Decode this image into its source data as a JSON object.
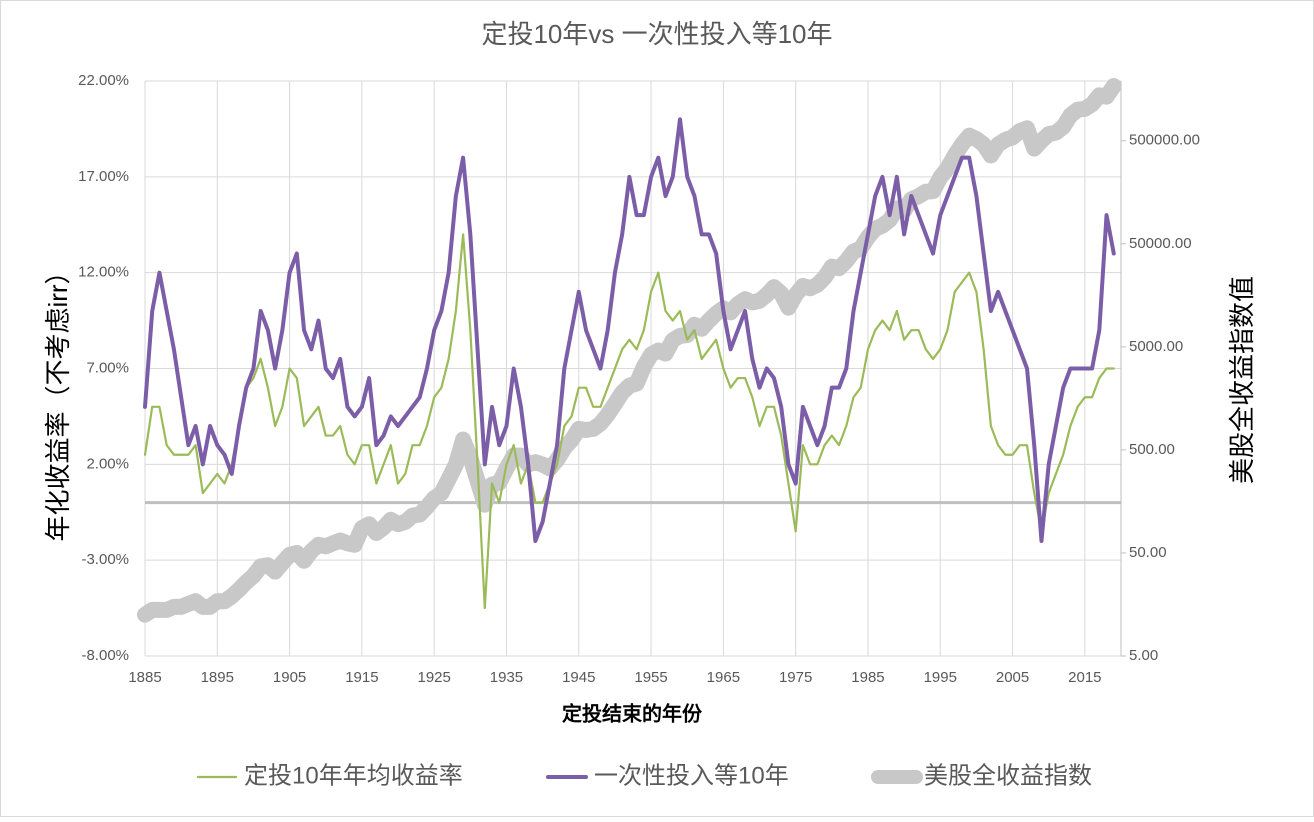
{
  "chart_data": {
    "type": "line",
    "title": "定投10年vs 一次性投入等10年",
    "xlabel": "定投结束的年份",
    "ylabel": "年化收益率（不考虑irr）",
    "y2label": "美股全收益指数值",
    "x": [
      1885,
      1886,
      1887,
      1888,
      1889,
      1890,
      1891,
      1892,
      1893,
      1894,
      1895,
      1896,
      1897,
      1898,
      1899,
      1900,
      1901,
      1902,
      1903,
      1904,
      1905,
      1906,
      1907,
      1908,
      1909,
      1910,
      1911,
      1912,
      1913,
      1914,
      1915,
      1916,
      1917,
      1918,
      1919,
      1920,
      1921,
      1922,
      1923,
      1924,
      1925,
      1926,
      1927,
      1928,
      1929,
      1930,
      1931,
      1932,
      1933,
      1934,
      1935,
      1936,
      1937,
      1938,
      1939,
      1940,
      1941,
      1942,
      1943,
      1944,
      1945,
      1946,
      1947,
      1948,
      1949,
      1950,
      1951,
      1952,
      1953,
      1954,
      1955,
      1956,
      1957,
      1958,
      1959,
      1960,
      1961,
      1962,
      1963,
      1964,
      1965,
      1966,
      1967,
      1968,
      1969,
      1970,
      1971,
      1972,
      1973,
      1974,
      1975,
      1976,
      1977,
      1978,
      1979,
      1980,
      1981,
      1982,
      1983,
      1984,
      1985,
      1986,
      1987,
      1988,
      1989,
      1990,
      1991,
      1992,
      1993,
      1994,
      1995,
      1996,
      1997,
      1998,
      1999,
      2000,
      2001,
      2002,
      2003,
      2004,
      2005,
      2006,
      2007,
      2008,
      2009,
      2010,
      2011,
      2012,
      2013,
      2014,
      2015,
      2016,
      2017,
      2018,
      2019
    ],
    "series": [
      {
        "name": "美股全收益指数",
        "color": "#c8c8c8",
        "axis": "y2",
        "values": [
          12.6,
          14,
          14,
          14,
          15,
          15,
          16,
          17,
          15,
          15,
          17,
          17,
          19,
          22,
          26,
          30,
          37,
          38,
          33,
          40,
          48,
          50,
          42,
          52,
          60,
          58,
          62,
          66,
          62,
          60,
          87,
          95,
          78,
          88,
          105,
          95,
          100,
          115,
          118,
          140,
          170,
          190,
          260,
          360,
          630,
          420,
          250,
          147,
          230,
          240,
          330,
          440,
          440,
          360,
          380,
          360,
          330,
          400,
          520,
          620,
          800,
          780,
          800,
          900,
          1100,
          1400,
          1800,
          2100,
          2200,
          3200,
          4200,
          4600,
          4300,
          5800,
          6400,
          6500,
          8200,
          7500,
          9000,
          10500,
          11800,
          10800,
          13000,
          14500,
          13500,
          14000,
          16000,
          19000,
          16500,
          12000,
          16000,
          19500,
          18500,
          20000,
          23500,
          30000,
          29000,
          34000,
          42000,
          45000,
          58000,
          70000,
          75000,
          85000,
          110000,
          105000,
          135000,
          145000,
          160000,
          162000,
          220000,
          270000,
          360000,
          460000,
          560000,
          520000,
          460000,
          360000,
          460000,
          510000,
          540000,
          620000,
          660000,
          420000,
          500000,
          580000,
          600000,
          680000,
          880000,
          1000000,
          1020000,
          1130000,
          1380000,
          1340000,
          1700000
        ]
      },
      {
        "name": "定投10年年均收益率",
        "color": "#9bbb59",
        "values": [
          2.5,
          5,
          5,
          3,
          2.5,
          2.5,
          2.5,
          3,
          0.5,
          1,
          1.5,
          1,
          2,
          4,
          6,
          6.5,
          7.5,
          6,
          4,
          5,
          7,
          6.5,
          4,
          4.5,
          5,
          3.5,
          3.5,
          4,
          2.5,
          2,
          3,
          3,
          1,
          2,
          3,
          1,
          1.5,
          3,
          3,
          4,
          5.5,
          6,
          7.5,
          10,
          14,
          9,
          2,
          -5.5,
          1,
          0,
          2,
          3,
          1,
          2,
          0,
          0,
          1,
          2,
          4,
          4.5,
          6,
          6,
          5,
          5,
          6,
          7,
          8,
          8.5,
          8,
          9,
          11,
          12,
          10,
          9.5,
          10,
          8.5,
          9,
          7.5,
          8,
          8.5,
          7,
          6,
          6.5,
          6.5,
          5.5,
          4,
          5,
          5,
          3.5,
          1,
          -1.5,
          3,
          2,
          2,
          3,
          3.5,
          3,
          4,
          5.5,
          6,
          8,
          9,
          9.5,
          9,
          10,
          8.5,
          9,
          9,
          8,
          7.5,
          8,
          9,
          11,
          11.5,
          12,
          11,
          8,
          4,
          3,
          2.5,
          2.5,
          3,
          3,
          0.5,
          -1.5,
          0.5,
          1.5,
          2.5,
          4,
          5,
          5.5,
          5.5,
          6.5,
          7,
          7
        ]
      },
      {
        "name": "一次性投入等10年",
        "color": "#7b5ea7",
        "values": [
          5,
          10,
          12,
          10,
          8,
          5.5,
          3,
          4,
          2,
          4,
          3,
          2.5,
          1.5,
          4,
          6,
          7,
          10,
          9,
          7,
          9,
          12,
          13,
          9,
          8,
          9.5,
          7,
          6.5,
          7.5,
          5,
          4.5,
          5,
          6.5,
          3,
          3.5,
          4.5,
          4,
          4.5,
          5,
          5.5,
          7,
          9,
          10,
          12,
          16,
          18,
          14,
          8,
          2,
          5,
          3,
          4,
          7,
          5,
          2,
          -2,
          -1,
          1,
          3,
          7,
          9,
          11,
          9,
          8,
          7,
          9,
          12,
          14,
          17,
          15,
          15,
          17,
          18,
          16,
          17,
          20,
          17,
          16,
          14,
          14,
          13,
          10,
          8,
          9,
          10,
          7.5,
          6,
          7,
          6.5,
          5,
          2,
          1,
          5,
          4,
          3,
          4,
          6,
          6,
          7,
          10,
          12,
          14,
          16,
          17,
          15,
          17,
          14,
          16,
          15,
          14,
          13,
          15,
          16,
          17,
          18,
          18,
          16,
          13,
          10,
          11,
          10,
          9,
          8,
          7,
          3,
          -2,
          2,
          4,
          6,
          7,
          7,
          7,
          7,
          9,
          15,
          13
        ]
      }
    ],
    "xlim": [
      1885,
      2020
    ],
    "xticks": [
      1885,
      1895,
      1905,
      1915,
      1925,
      1935,
      1945,
      1955,
      1965,
      1975,
      1985,
      1995,
      2005,
      2015
    ],
    "ylim": [
      -8,
      22
    ],
    "yticks": [
      {
        "value": -8,
        "label": "-8.00%"
      },
      {
        "value": -3,
        "label": "-3.00%"
      },
      {
        "value": 2,
        "label": "2.00%"
      },
      {
        "value": 7,
        "label": "7.00%"
      },
      {
        "value": 12,
        "label": "12.00%"
      },
      {
        "value": 17,
        "label": "17.00%"
      },
      {
        "value": 22,
        "label": "22.00%"
      }
    ],
    "y2lim": [
      5,
      1900000
    ],
    "y2scale": "log",
    "y2ticks": [
      {
        "value": 5,
        "label": "5.00"
      },
      {
        "value": 50,
        "label": "50.00"
      },
      {
        "value": 500,
        "label": "500.00"
      },
      {
        "value": 5000,
        "label": "5000.00"
      },
      {
        "value": 50000,
        "label": "50000.00"
      },
      {
        "value": 500000,
        "label": "500000.00"
      }
    ],
    "grid": true,
    "legend": "bottom"
  }
}
